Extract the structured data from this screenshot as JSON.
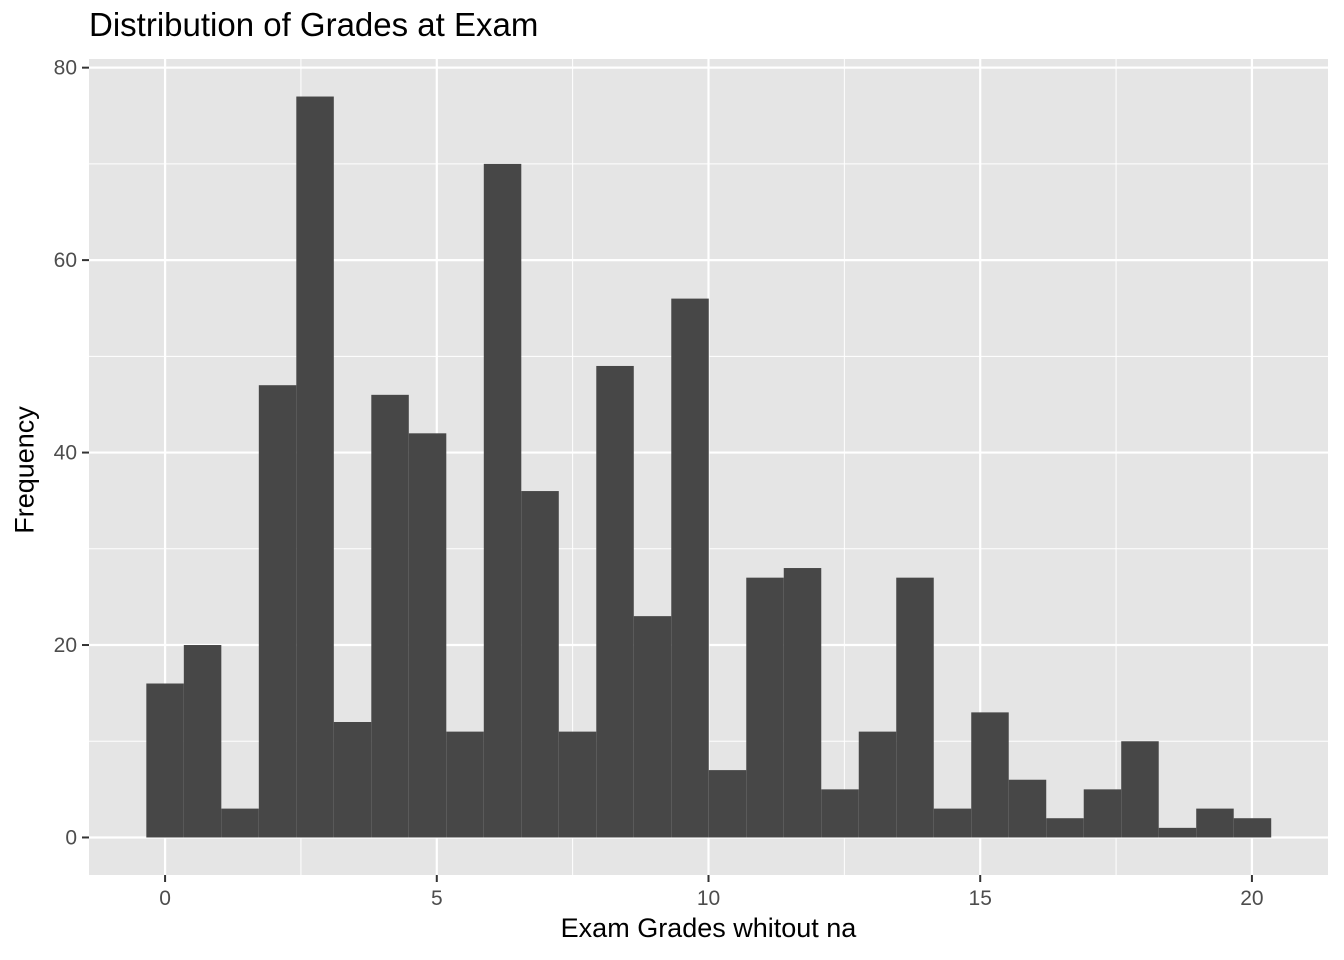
{
  "chart_data": {
    "type": "bar",
    "title": "Distribution of Grades at Exam",
    "xlabel": "Exam Grades whitout na",
    "ylabel": "Frequency",
    "bins": 30,
    "bin_width": 0.69,
    "x_start": -0.345,
    "values": [
      16,
      20,
      3,
      47,
      77,
      12,
      46,
      42,
      11,
      70,
      36,
      11,
      49,
      23,
      56,
      7,
      27,
      28,
      5,
      11,
      27,
      3,
      13,
      6,
      2,
      5,
      10,
      1,
      3,
      2
    ],
    "xlim": [
      -1.4,
      21.4
    ],
    "ylim": [
      -3.9,
      80.9
    ],
    "x_ticks": [
      0,
      5,
      10,
      15,
      20
    ],
    "y_ticks": [
      0,
      20,
      40,
      60,
      80
    ],
    "grid": true,
    "colors": {
      "panel": "#e5e5e5",
      "grid": "#ffffff",
      "bar": "#474747",
      "tick_text": "#4d4d4d",
      "tick": "#333333"
    }
  }
}
